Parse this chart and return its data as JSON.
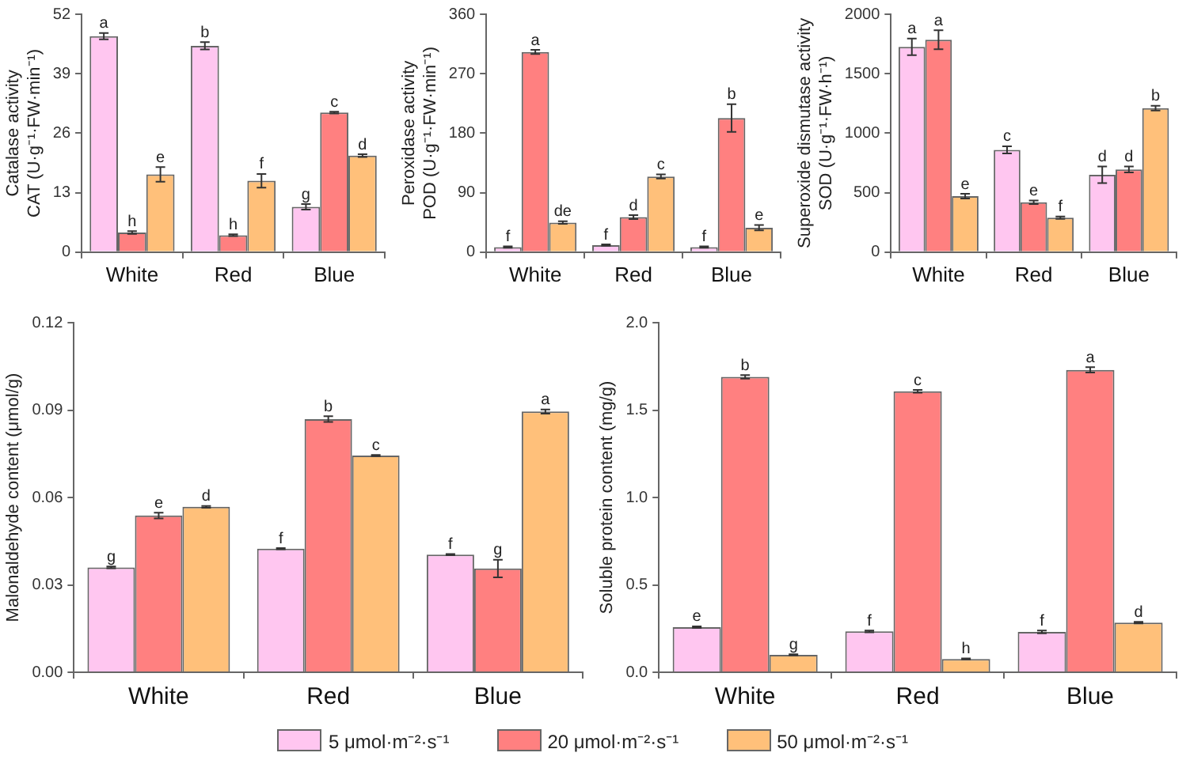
{
  "chart_data": [
    {
      "type": "bar",
      "ylabel": "Catalase activity\nCAT (U·g⁻¹·FW·min⁻¹)",
      "categories": [
        "White",
        "Red",
        "Blue"
      ],
      "ylim": [
        0,
        52
      ],
      "yticks": [
        0,
        13,
        26,
        39,
        52
      ],
      "series": [
        {
          "color": "#ffc6f0",
          "values": [
            47.2,
            45.1,
            9.9
          ],
          "errors": [
            0.7,
            0.8,
            0.6
          ],
          "value_labels": [
            "a",
            "b",
            "g"
          ]
        },
        {
          "color": "#ff8080",
          "values": [
            4.3,
            3.7,
            30.5
          ],
          "errors": [
            0.3,
            0.2,
            0.2
          ],
          "value_labels": [
            "h",
            "h",
            "c"
          ]
        },
        {
          "color": "#ffc07a",
          "values": [
            17.0,
            15.6,
            21.1
          ],
          "errors": [
            1.6,
            1.5,
            0.3
          ],
          "value_labels": [
            "e",
            "f",
            "d"
          ]
        }
      ]
    },
    {
      "type": "bar",
      "ylabel": "Peroxidase activity\nPOD (U·g⁻¹·FW·min⁻¹)",
      "categories": [
        "White",
        "Red",
        "Blue"
      ],
      "ylim": [
        0,
        360
      ],
      "yticks": [
        0,
        90,
        180,
        270,
        360
      ],
      "series": [
        {
          "color": "#ffc6f0",
          "values": [
            7.6,
            10.6,
            7.6
          ],
          "errors": [
            1,
            1,
            1
          ],
          "value_labels": [
            "f",
            "f",
            "f"
          ]
        },
        {
          "color": "#ff8080",
          "values": [
            303,
            53,
            203
          ],
          "errors": [
            3,
            3,
            21
          ],
          "value_labels": [
            "a",
            "d",
            "b"
          ]
        },
        {
          "color": "#ffc07a",
          "values": [
            44.7,
            114.5,
            37
          ],
          "errors": [
            2,
            3,
            4
          ],
          "value_labels": [
            "de",
            "c",
            "e"
          ]
        }
      ]
    },
    {
      "type": "bar",
      "ylabel": "Superoxide dismutase activity\nSOD (U·g⁻¹·FW·h⁻¹)",
      "categories": [
        "White",
        "Red",
        "Blue"
      ],
      "ylim": [
        0,
        2000
      ],
      "yticks": [
        0,
        500,
        1000,
        1500,
        2000
      ],
      "series": [
        {
          "color": "#ffc6f0",
          "values": [
            1726,
            860,
            650
          ],
          "errors": [
            70,
            30,
            70
          ],
          "value_labels": [
            "a",
            "c",
            "d"
          ]
        },
        {
          "color": "#ff8080",
          "values": [
            1786,
            420,
            695
          ],
          "errors": [
            80,
            15,
            25
          ],
          "value_labels": [
            "a",
            "e",
            "d"
          ]
        },
        {
          "color": "#ffc07a",
          "values": [
            470,
            290,
            1210
          ],
          "errors": [
            20,
            10,
            20
          ],
          "value_labels": [
            "e",
            "f",
            "b"
          ]
        }
      ]
    },
    {
      "type": "bar",
      "ylabel": "Malonaldehyde content (μmol/g)",
      "categories": [
        "White",
        "Red",
        "Blue"
      ],
      "ylim": [
        0,
        0.12
      ],
      "yticks": [
        {
          "value": 0,
          "label": "0.00"
        },
        {
          "value": 0.03,
          "label": "0.03"
        },
        {
          "value": 0.06,
          "label": "0.06"
        },
        {
          "value": 0.09,
          "label": "0.09"
        },
        {
          "value": 0.12,
          "label": "0.12"
        }
      ],
      "series": [
        {
          "color": "#ffc6f0",
          "values": [
            0.036,
            0.0424,
            0.0404
          ],
          "errors": [
            0.0003,
            0.0002,
            0.0002
          ],
          "value_labels": [
            "g",
            "f",
            "f"
          ]
        },
        {
          "color": "#ff8080",
          "values": [
            0.0538,
            0.0869,
            0.0356
          ],
          "errors": [
            0.001,
            0.001,
            0.003
          ],
          "value_labels": [
            "e",
            "b",
            "g"
          ]
        },
        {
          "color": "#ffc07a",
          "values": [
            0.0568,
            0.0744,
            0.0895
          ],
          "errors": [
            0.0003,
            0.0002,
            0.0007
          ],
          "value_labels": [
            "d",
            "c",
            "a"
          ]
        }
      ]
    },
    {
      "type": "bar",
      "ylabel": "Soluble protein content (mg/g)",
      "categories": [
        "White",
        "Red",
        "Blue"
      ],
      "ylim": [
        0,
        2.0
      ],
      "yticks": [
        {
          "value": 0,
          "label": "0.0"
        },
        0.5,
        {
          "value": 1,
          "label": "1.0"
        },
        1.5,
        {
          "value": 2,
          "label": "2.0"
        }
      ],
      "legend": "bottom",
      "series": [
        {
          "name": "5 μmol·m⁻²·s⁻¹",
          "color": "#ffc6f0",
          "values": [
            0.258,
            0.234,
            0.231
          ],
          "errors": [
            0.005,
            0.005,
            0.008
          ],
          "value_labels": [
            "e",
            "f",
            "f"
          ]
        },
        {
          "name": "20 μmol·m⁻²·s⁻¹",
          "color": "#ff8080",
          "values": [
            1.69,
            1.607,
            1.73
          ],
          "errors": [
            0.01,
            0.008,
            0.015
          ],
          "value_labels": [
            "b",
            "c",
            "a"
          ]
        },
        {
          "name": "50 μmol·m⁻²·s⁻¹",
          "color": "#ffc07a",
          "values": [
            0.1,
            0.076,
            0.284
          ],
          "errors": [
            0.003,
            0.003,
            0.005
          ],
          "value_labels": [
            "g",
            "h",
            "d"
          ]
        }
      ]
    }
  ]
}
